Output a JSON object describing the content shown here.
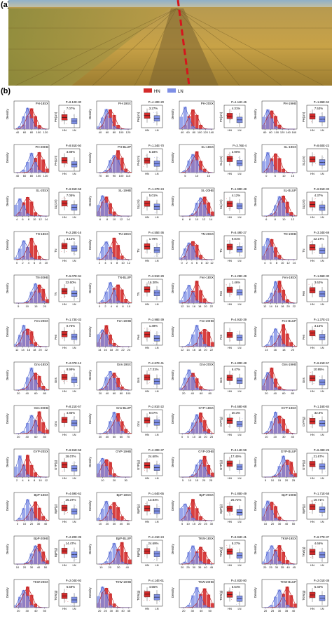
{
  "panels": [
    {
      "label": "(a)"
    },
    {
      "label": "(b)"
    }
  ],
  "legend": {
    "hn": "HN",
    "ln": "LN",
    "hn_color": "#d42a2a",
    "ln_color": "#7e8fe6"
  },
  "density_label": "Density",
  "box_xticks": [
    "HN",
    "LN"
  ],
  "traits": [
    {
      "name": "PH-18SX",
      "p": "P=8.12E-30",
      "pct": "7.07%",
      "box_ylabel": "PH(cm)",
      "xticks": [
        "40",
        "60",
        "80",
        "100",
        "120"
      ]
    },
    {
      "name": "PH-19SX",
      "p": "P=4.10E-20",
      "pct": "3.27%",
      "box_ylabel": "PH(cm)",
      "xticks": [
        "40",
        "60",
        "80",
        "100",
        "120"
      ]
    },
    {
      "name": "PH-20SX",
      "p": "P=1.11E-46",
      "pct": "4.31%",
      "box_ylabel": "PH(cm)",
      "xticks": [
        "40",
        "60",
        "80",
        "100",
        "120",
        "140"
      ]
    },
    {
      "name": "PH-19HB",
      "p": "P=1.86E-62",
      "pct": "7.53%",
      "box_ylabel": "PH(cm)",
      "xticks": [
        "60",
        "80",
        "100",
        "120",
        "140",
        "160"
      ]
    },
    {
      "name": "PH-20HB",
      "p": "P=8.91E-50",
      "pct": "3.88%",
      "box_ylabel": "PH(cm)",
      "xticks": [
        "40",
        "60",
        "80",
        "100",
        "120"
      ]
    },
    {
      "name": "PH-BLUP",
      "p": "P=1.34E-70",
      "pct": "5.18%",
      "box_ylabel": "PH(cm)",
      "xticks": [
        "70",
        "80",
        "90",
        "100",
        "110"
      ]
    },
    {
      "name": "SL-18SX",
      "p": "P=3.76E-4",
      "pct": "2.90%",
      "box_ylabel": "SL(cm)",
      "xticks": [
        "5",
        "10",
        "15"
      ]
    },
    {
      "name": "SL-19SX",
      "p": "P=8.60E-23",
      "pct": "",
      "box_ylabel": "SL(cm)",
      "xticks": [
        "0",
        "5",
        "10",
        "15"
      ]
    },
    {
      "name": "SL-20SX",
      "p": "P=6.91E-58",
      "pct": "7.05%",
      "box_ylabel": "SL(cm)",
      "xticks": [
        "4",
        "6",
        "8",
        "10",
        "12",
        "14"
      ]
    },
    {
      "name": "SL-19HB",
      "p": "P=1.27E-24",
      "pct": "5.01%",
      "box_ylabel": "SL(cm)",
      "xticks": [
        "6",
        "8",
        "10",
        "12",
        "14"
      ]
    },
    {
      "name": "SL-20HB",
      "p": "P=1.99E-48",
      "pct": "4.12%",
      "box_ylabel": "SL(cm)",
      "xticks": [
        "6",
        "8",
        "10",
        "12",
        "14"
      ]
    },
    {
      "name": "SL-BLUP",
      "p": "P=6.91E-33",
      "pct": "4.37%",
      "box_ylabel": "SL(cm)",
      "xticks": [
        "6",
        "8",
        "10",
        "12"
      ]
    },
    {
      "name": "TN-18SX",
      "p": "P=2.28E-16",
      "pct": "3.12%",
      "box_ylabel": "TN",
      "xticks": [
        "0",
        "2",
        "4",
        "6",
        "8",
        "10"
      ]
    },
    {
      "name": "TN-19SX",
      "p": "P=4.55E-36",
      "pct": "1.79%",
      "box_ylabel": "TN",
      "xticks": [
        "2",
        "4",
        "6",
        "8",
        "10",
        "12"
      ]
    },
    {
      "name": "TN-20SX",
      "p": "P=6.49E-27",
      "pct": "9.81%",
      "box_ylabel": "TN",
      "xticks": [
        "0",
        "2",
        "4",
        "6",
        "8",
        "10",
        "12"
      ]
    },
    {
      "name": "TN-19HB",
      "p": "P=3.34E-69",
      "pct": "22.17%",
      "box_ylabel": "TN",
      "xticks": [
        "4",
        "6",
        "8",
        "10",
        "12",
        "14"
      ]
    },
    {
      "name": "TN-20HB",
      "p": "P=5.07E-94",
      "pct": "22.60%",
      "box_ylabel": "TN",
      "xticks": [
        "5",
        "10",
        "15",
        "20"
      ]
    },
    {
      "name": "TN-BLUP",
      "p": "P=3.91E-29",
      "pct": "16.30%",
      "box_ylabel": "TN",
      "xticks": [
        "0",
        "2",
        "4",
        "6",
        "8",
        "10"
      ]
    },
    {
      "name": "Fen-18SX",
      "p": "P=1.25E-49",
      "pct": "1.46%",
      "box_ylabel": "Fen",
      "xticks": [
        "12",
        "14",
        "16",
        "18",
        "20",
        "22"
      ]
    },
    {
      "name": "Fen-19SX",
      "p": "P=1.66E-30",
      "pct": "3.62%",
      "box_ylabel": "Fen",
      "xticks": [
        "12",
        "14",
        "16",
        "18",
        "20",
        "22"
      ]
    },
    {
      "name": "Fen-20SX",
      "p": "P=1.73E-33",
      "pct": "0.75%",
      "box_ylabel": "Fen",
      "xticks": [
        "12",
        "14",
        "16",
        "18",
        "20",
        "22"
      ]
    },
    {
      "name": "Fen-19HB",
      "p": "P=3.98E-39",
      "pct": "1.49%",
      "box_ylabel": "Fen",
      "xticks": [
        "14",
        "16",
        "18",
        "20",
        "22",
        "24"
      ]
    },
    {
      "name": "Fen-20HB",
      "p": "P=4.91E-39",
      "pct": "",
      "box_ylabel": "Fen",
      "xticks": [
        "12",
        "14",
        "16",
        "18",
        "20",
        "22"
      ]
    },
    {
      "name": "Fen-BLUP",
      "p": "P=1.37E-23",
      "pct": "3.15%",
      "box_ylabel": "Fen",
      "xticks": [
        "14",
        "16",
        "18",
        "20"
      ]
    },
    {
      "name": "Gns-18SX",
      "p": "P=2.07E-12",
      "pct": "8.99%",
      "box_ylabel": "Gns",
      "xticks": [
        "20",
        "40",
        "60",
        "80"
      ]
    },
    {
      "name": "Gns-19SX",
      "p": "P=2.67E-41",
      "pct": "17.31%",
      "box_ylabel": "Gns",
      "xticks": [
        "20",
        "40",
        "60",
        "80",
        "100"
      ]
    },
    {
      "name": "Gns-20SX",
      "p": "P=1.80E-48",
      "pct": "6.47%",
      "box_ylabel": "Gns",
      "xticks": [
        "20",
        "40",
        "60",
        "80"
      ]
    },
    {
      "name": "Gns-19HB",
      "p": "P=6.21E-57",
      "pct": "10.95%",
      "box_ylabel": "Gns",
      "xticks": [
        "20",
        "40",
        "60",
        "80"
      ]
    },
    {
      "name": "Gns-20HB",
      "p": "P=8.21E-57",
      "pct": "4.85%",
      "box_ylabel": "Gns",
      "xticks": [
        "20",
        "40",
        "60",
        "80"
      ]
    },
    {
      "name": "Gns-BLUP",
      "p": "P=2.81E-22",
      "pct": "9.07%",
      "box_ylabel": "Gns",
      "xticks": [
        "30",
        "40",
        "50",
        "60",
        "70"
      ]
    },
    {
      "name": "GYP-18SX",
      "p": "P=4.66E-68",
      "pct": "30.3%",
      "box_ylabel": "GYP(g)",
      "xticks": [
        "0",
        "5",
        "10",
        "15",
        "20",
        "25"
      ]
    },
    {
      "name": "GYP-19SX",
      "p": "P=1.16E-84",
      "pct": "32.8%",
      "box_ylabel": "GYP(g)",
      "xticks": [
        "10",
        "20",
        "30",
        "40"
      ]
    },
    {
      "name": "GYP-20SX",
      "p": "P=6.91E-58",
      "pct": "28.07%",
      "box_ylabel": "GYP(g)",
      "xticks": [
        "2",
        "4",
        "6",
        "8",
        "10",
        "12"
      ]
    },
    {
      "name": "GYP-19HB",
      "p": "P=2.20E-37",
      "pct": "24.60%",
      "box_ylabel": "GYP(g)",
      "xticks": [
        "10",
        "20",
        "30"
      ]
    },
    {
      "name": "GYP-20HB",
      "p": "P=3.14E-59",
      "pct": "17.45%",
      "box_ylabel": "GYP(g)",
      "xticks": [
        "5",
        "10",
        "15",
        "20",
        "25"
      ]
    },
    {
      "name": "GYP-BLUP",
      "p": "P=6.49E-25",
      "pct": "21.67%",
      "box_ylabel": "GYP(g)",
      "xticks": [
        "5",
        "10",
        "15",
        "20",
        "25"
      ]
    },
    {
      "name": "BpP-18SX",
      "p": "P=4.69E-62",
      "pct": "26.37%",
      "box_ylabel": "BpP(g)",
      "xticks": [
        "0",
        "10",
        "20",
        "30",
        "40"
      ]
    },
    {
      "name": "BpP-19SX",
      "p": "P=1.64E-65",
      "pct": "13.84%",
      "box_ylabel": "BpP(g)",
      "xticks": [
        "10",
        "20",
        "30",
        "40",
        "50"
      ]
    },
    {
      "name": "BpP-20SX",
      "p": "P=1.85E-49",
      "pct": "26.72%",
      "box_ylabel": "BpP(g)",
      "xticks": [
        "5",
        "10",
        "15",
        "20",
        "25",
        "30"
      ]
    },
    {
      "name": "BpP-19HB",
      "p": "P=1.71E-58",
      "pct": "19.71%",
      "box_ylabel": "BpP(g)",
      "xticks": [
        "10",
        "20",
        "30",
        "40",
        "50"
      ]
    },
    {
      "name": "BpP-20HB",
      "p": "P=2.20E-39",
      "pct": "14.47%",
      "box_ylabel": "BpP(g)",
      "xticks": [
        "10",
        "20",
        "30",
        "40",
        "50"
      ]
    },
    {
      "name": "BpP-BLUP",
      "p": "P=2.41E-24",
      "pct": "24.69%",
      "box_ylabel": "BpP(g)",
      "xticks": [
        "10",
        "20",
        "30",
        "40"
      ]
    },
    {
      "name": "TKW-18SX",
      "p": "P=6.94E-41",
      "pct": "5.27%",
      "box_ylabel": "TKW(g)",
      "xticks": [
        "20",
        "25",
        "30",
        "35",
        "40",
        "45"
      ]
    },
    {
      "name": "TKW-19SX",
      "p": "P=6.77E-37",
      "pct": "4.66%",
      "box_ylabel": "TKW(g)",
      "xticks": [
        "20",
        "25",
        "30",
        "35",
        "40",
        "45"
      ]
    },
    {
      "name": "TKW-20SX",
      "p": "P=2.04E-93",
      "pct": "6.59%",
      "box_ylabel": "TKW(g)",
      "xticks": [
        "20",
        "30",
        "40",
        "50"
      ]
    },
    {
      "name": "TKW-19HB",
      "p": "P=4.14E-61",
      "pct": "4.55%",
      "box_ylabel": "TKW(g)",
      "xticks": [
        "20",
        "25",
        "30",
        "35",
        "40",
        "45"
      ]
    },
    {
      "name": "TKW-20HB",
      "p": "P=2.82E-80",
      "pct": "5.54%",
      "box_ylabel": "TKW(g)",
      "xticks": [
        "20",
        "30",
        "40",
        "50"
      ]
    },
    {
      "name": "TKW-BLUP",
      "p": "P=2.01E-38",
      "pct": "5.40%",
      "box_ylabel": "TKW(g)",
      "xticks": [
        "20",
        "25",
        "30",
        "35",
        "40"
      ]
    }
  ]
}
